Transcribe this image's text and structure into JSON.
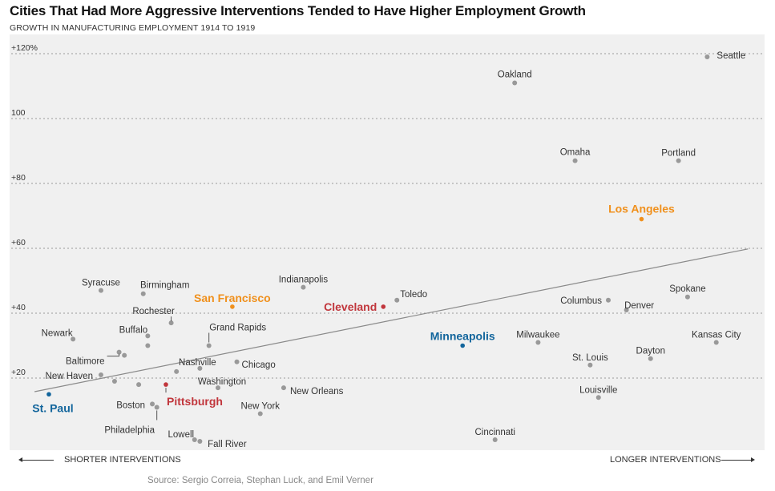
{
  "chart_data": {
    "type": "scatter",
    "title": "Cities That Had More Aggressive Interventions Tended to Have Higher Employment Growth",
    "subtitle": "GROWTH IN MANUFACTURING EMPLOYMENT 1914 TO 1919",
    "xlabel_left": "SHORTER INTERVENTIONS",
    "xlabel_right": "LONGER INTERVENTIONS",
    "x_scale": "relative intervention length (0 = shortest, 100 = longest), unlabeled axis",
    "xlim": [
      0,
      100
    ],
    "ylabel": "Growth in manufacturing employment (%)",
    "ylim": [
      -2,
      126
    ],
    "yticks": [
      {
        "value": 120,
        "label": "+120%"
      },
      {
        "value": 100,
        "label": "100"
      },
      {
        "value": 80,
        "label": "+80"
      },
      {
        "value": 60,
        "label": "+60"
      },
      {
        "value": 40,
        "label": "+40"
      },
      {
        "value": 20,
        "label": "+20"
      }
    ],
    "grid": true,
    "trendline": {
      "x": [
        3.3,
        97.8
      ],
      "y": [
        15.8,
        59.8
      ]
    },
    "colors": {
      "default": "#999999",
      "orange": "#f0901c",
      "red": "#c1363c",
      "blue": "#12659c",
      "grid": "#9a9a9a",
      "trend": "#8a8a8a",
      "label": "#333333"
    },
    "points": [
      {
        "name": "Seattle",
        "x": 92.4,
        "y": 119,
        "color": "default"
      },
      {
        "name": "Oakland",
        "x": 66.9,
        "y": 111,
        "color": "default"
      },
      {
        "name": "Omaha",
        "x": 74.9,
        "y": 87,
        "color": "default"
      },
      {
        "name": "Portland",
        "x": 88.6,
        "y": 87,
        "color": "default"
      },
      {
        "name": "Los Angeles",
        "x": 83.7,
        "y": 69,
        "color": "orange",
        "highlight": true
      },
      {
        "name": "Spokane",
        "x": 89.8,
        "y": 45,
        "color": "default"
      },
      {
        "name": "Columbus",
        "x": 79.3,
        "y": 44,
        "color": "default"
      },
      {
        "name": "Denver",
        "x": 81.7,
        "y": 41,
        "color": "default"
      },
      {
        "name": "Toledo",
        "x": 51.3,
        "y": 44,
        "color": "default"
      },
      {
        "name": "Cleveland",
        "x": 49.5,
        "y": 42,
        "color": "red",
        "highlight": true
      },
      {
        "name": "San Francisco",
        "x": 29.5,
        "y": 42,
        "color": "orange",
        "highlight": true
      },
      {
        "name": "Indianapolis",
        "x": 38.9,
        "y": 48,
        "color": "default"
      },
      {
        "name": "Syracuse",
        "x": 12.1,
        "y": 47,
        "color": "default"
      },
      {
        "name": "Birmingham",
        "x": 17.7,
        "y": 46,
        "color": "default"
      },
      {
        "name": "Rochester",
        "x": 21.4,
        "y": 37,
        "color": "default"
      },
      {
        "name": "Buffalo",
        "x": 18.3,
        "y": 33,
        "color": "default"
      },
      {
        "name": "",
        "x": 18.3,
        "y": 30,
        "color": "default"
      },
      {
        "name": "Grand Rapids",
        "x": 26.4,
        "y": 30,
        "color": "default"
      },
      {
        "name": "Newark",
        "x": 8.4,
        "y": 32,
        "color": "default"
      },
      {
        "name": "Baltimore",
        "x": 14.5,
        "y": 28,
        "color": "default"
      },
      {
        "name": "",
        "x": 15.2,
        "y": 27,
        "color": "default"
      },
      {
        "name": "Minneapolis",
        "x": 60.0,
        "y": 30,
        "color": "blue",
        "highlight": true
      },
      {
        "name": "Milwaukee",
        "x": 70.0,
        "y": 31,
        "color": "default"
      },
      {
        "name": "Kansas City",
        "x": 93.6,
        "y": 31,
        "color": "default"
      },
      {
        "name": "Dayton",
        "x": 84.9,
        "y": 26,
        "color": "default"
      },
      {
        "name": "St. Louis",
        "x": 76.9,
        "y": 24,
        "color": "default"
      },
      {
        "name": "Nashville",
        "x": 25.2,
        "y": 23,
        "color": "default"
      },
      {
        "name": "Chicago",
        "x": 30.1,
        "y": 25,
        "color": "default"
      },
      {
        "name": "",
        "x": 22.1,
        "y": 22,
        "color": "default"
      },
      {
        "name": "New Haven",
        "x": 12.1,
        "y": 21,
        "color": "default"
      },
      {
        "name": "",
        "x": 13.9,
        "y": 19,
        "color": "default"
      },
      {
        "name": "",
        "x": 17.1,
        "y": 18,
        "color": "default"
      },
      {
        "name": "Pittsburgh",
        "x": 20.7,
        "y": 18,
        "color": "red",
        "highlight": true
      },
      {
        "name": "Washington",
        "x": 27.6,
        "y": 17,
        "color": "default"
      },
      {
        "name": "New Orleans",
        "x": 36.3,
        "y": 17,
        "color": "default"
      },
      {
        "name": "Louisville",
        "x": 78.0,
        "y": 14,
        "color": "default"
      },
      {
        "name": "St. Paul",
        "x": 5.2,
        "y": 15,
        "color": "blue",
        "highlight": true
      },
      {
        "name": "Boston",
        "x": 18.9,
        "y": 12,
        "color": "default"
      },
      {
        "name": "Philadelphia",
        "x": 19.5,
        "y": 11,
        "color": "default"
      },
      {
        "name": "New York",
        "x": 33.2,
        "y": 9,
        "color": "default"
      },
      {
        "name": "Lowell",
        "x": 24.5,
        "y": 1,
        "color": "default"
      },
      {
        "name": "Fall River",
        "x": 25.2,
        "y": 0.5,
        "color": "default"
      },
      {
        "name": "Cincinnati",
        "x": 64.3,
        "y": 1,
        "color": "default"
      }
    ]
  },
  "source": "Source: Sergio Correia, Stephan Luck, and Emil Verner"
}
